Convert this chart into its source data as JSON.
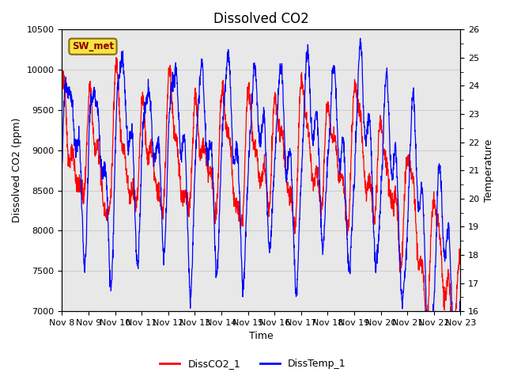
{
  "title": "Dissolved CO2",
  "xlabel": "Time",
  "ylabel_left": "Dissolved CO2 (ppm)",
  "ylabel_right": "Temperature",
  "legend_labels": [
    "DissCO2_1",
    "DissTemp_1"
  ],
  "sw_met_label": "SW_met",
  "ylim_left": [
    7000,
    10500
  ],
  "ylim_right": [
    16.0,
    26.0
  ],
  "x_tick_labels": [
    "Nov 8",
    "Nov 9",
    "Nov 10",
    "Nov 11",
    "Nov 12",
    "Nov 13",
    "Nov 14",
    "Nov 15",
    "Nov 16",
    "Nov 17",
    "Nov 18",
    "Nov 19",
    "Nov 20",
    "Nov 21",
    "Nov 22",
    "Nov 23"
  ],
  "plot_bg_color": "#e8e8e8",
  "fig_bg_color": "#ffffff",
  "grid_color": "#d0d0d0",
  "title_fontsize": 12,
  "axis_label_fontsize": 9,
  "tick_label_fontsize": 8,
  "num_points": 2000,
  "co2_base": 8900,
  "co2_amp1": 600,
  "co2_amp2": 250,
  "co2_period1": 1.0,
  "co2_period2": 0.5,
  "temp_base": 21.5,
  "temp_amp1": 2.8,
  "temp_amp2": 1.2,
  "temp_period1": 1.0,
  "temp_period2": 0.5
}
